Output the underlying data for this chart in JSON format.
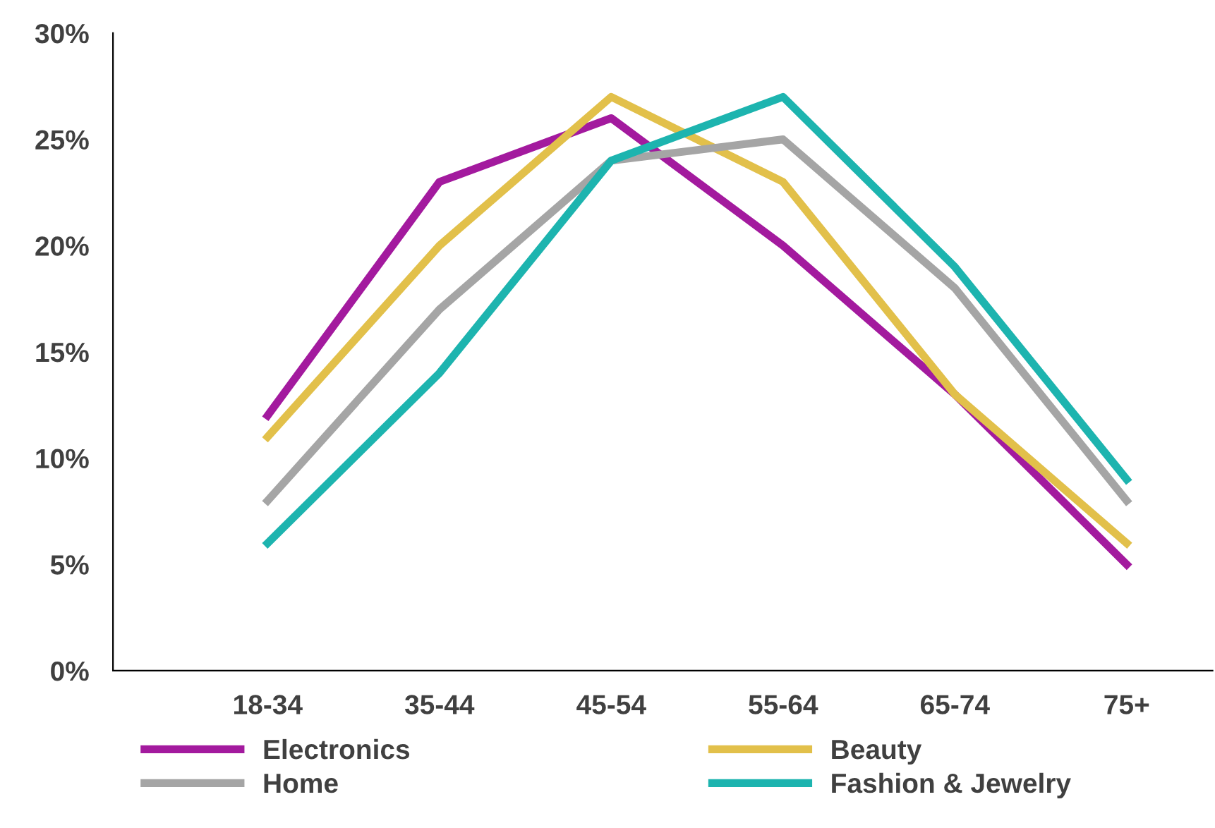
{
  "chart_data": {
    "type": "line",
    "categories": [
      "18-34",
      "35-44",
      "45-54",
      "55-64",
      "65-74",
      "75+"
    ],
    "series": [
      {
        "name": "Electronics",
        "color": "#a31a9e",
        "values": [
          12,
          23,
          26,
          20,
          13,
          5
        ]
      },
      {
        "name": "Beauty",
        "color": "#e2c04a",
        "values": [
          11,
          20,
          27,
          23,
          13,
          6
        ]
      },
      {
        "name": "Home",
        "color": "#a5a5a5",
        "values": [
          8,
          17,
          24,
          25,
          18,
          8
        ]
      },
      {
        "name": "Fashion & Jewelry",
        "color": "#1db4af",
        "values": [
          6,
          14,
          24,
          27,
          19,
          9
        ]
      }
    ],
    "ylim": [
      0,
      30
    ],
    "yticks": [
      {
        "value": 0,
        "label": "0%"
      },
      {
        "value": 5,
        "label": "5%"
      },
      {
        "value": 10,
        "label": "10%"
      },
      {
        "value": 15,
        "label": "15%"
      },
      {
        "value": 20,
        "label": "20%"
      },
      {
        "value": 25,
        "label": "25%"
      },
      {
        "value": 30,
        "label": "30%"
      }
    ],
    "grid": false,
    "legend": "bottom",
    "marker": "none",
    "line_style": "solid"
  }
}
